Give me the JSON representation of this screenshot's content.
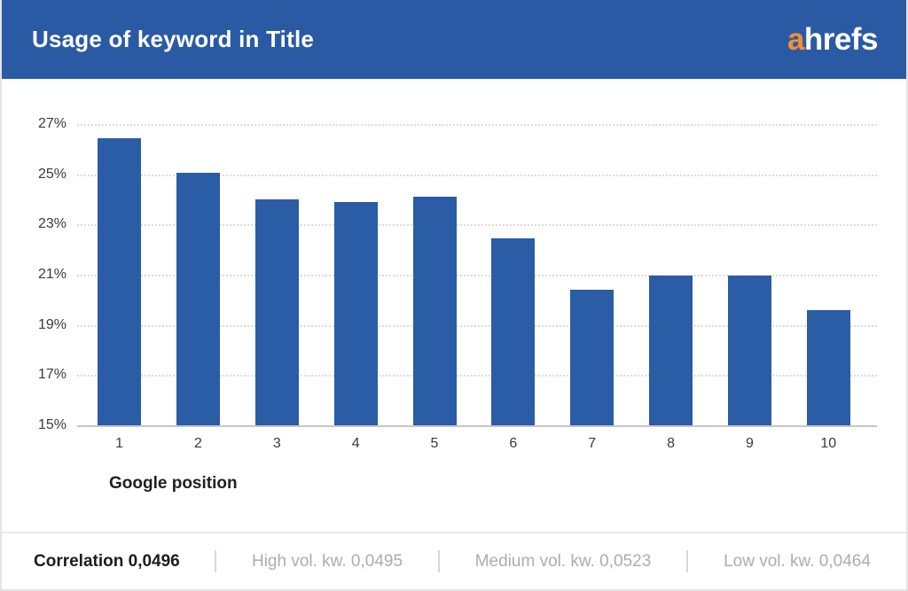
{
  "header": {
    "title": "Usage of keyword in Title",
    "logo": {
      "prefix": "a",
      "rest": "hrefs"
    }
  },
  "chart_data": {
    "type": "bar",
    "categories": [
      "1",
      "2",
      "3",
      "4",
      "5",
      "6",
      "7",
      "8",
      "9",
      "10"
    ],
    "values": [
      26.45,
      25.05,
      24.0,
      23.9,
      24.1,
      22.45,
      20.4,
      20.95,
      20.95,
      19.6
    ],
    "title": "Usage of keyword in Title",
    "xlabel": "Google position",
    "ylabel": "",
    "ylim": [
      15,
      27
    ],
    "yticks": [
      27,
      25,
      23,
      21,
      19,
      17,
      15
    ],
    "ytick_suffix": "%",
    "grid": "horizontal-dotted",
    "legend": "none",
    "bar_color": "#2B5CA6"
  },
  "footer": {
    "items": [
      {
        "label": "Correlation 0,0496",
        "emphasis": true
      },
      {
        "label": "High vol. kw. 0,0495",
        "emphasis": false
      },
      {
        "label": "Medium vol. kw. 0,0523",
        "emphasis": false
      },
      {
        "label": "Low vol. kw. 0,0464",
        "emphasis": false
      }
    ]
  },
  "colors": {
    "header_bg": "#2B5AA5",
    "bar": "#2B5CA6",
    "logo_accent": "#F18F34",
    "gridline": "#DBDBDB",
    "baseline": "#C6C6C6",
    "axis_text": "#3A3A3A",
    "footer_muted": "#ADADAD",
    "footer_dark": "#1C1C1C"
  }
}
